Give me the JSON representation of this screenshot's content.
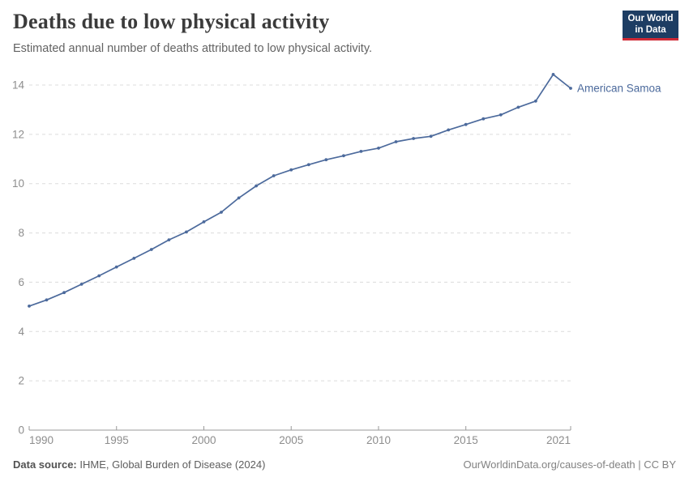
{
  "header": {
    "title": "Deaths due to low physical activity",
    "subtitle": "Estimated annual number of deaths attributed to low physical activity.",
    "logo": {
      "line1": "Our World",
      "line2": "in Data"
    }
  },
  "chart_data": {
    "type": "line",
    "title": "Deaths due to low physical activity",
    "xlabel": "",
    "ylabel": "",
    "x": [
      1990,
      1991,
      1992,
      1993,
      1994,
      1995,
      1996,
      1997,
      1998,
      1999,
      2000,
      2001,
      2002,
      2003,
      2004,
      2005,
      2006,
      2007,
      2008,
      2009,
      2010,
      2011,
      2012,
      2013,
      2014,
      2015,
      2016,
      2017,
      2018,
      2019,
      2020,
      2021
    ],
    "series": [
      {
        "name": "American Samoa",
        "color": "#4c6a9c",
        "values": [
          5.03,
          5.28,
          5.58,
          5.92,
          6.26,
          6.62,
          6.97,
          7.33,
          7.72,
          8.04,
          8.45,
          8.84,
          9.42,
          9.91,
          10.32,
          10.56,
          10.77,
          10.97,
          11.13,
          11.31,
          11.44,
          11.7,
          11.83,
          11.92,
          12.18,
          12.4,
          12.63,
          12.79,
          13.1,
          13.35,
          14.43,
          13.87
        ]
      }
    ],
    "xlim": [
      1990,
      2021
    ],
    "ylim": [
      0,
      14
    ],
    "x_ticks": [
      1990,
      1995,
      2000,
      2005,
      2010,
      2015,
      2021
    ],
    "y_ticks": [
      0,
      2,
      4,
      6,
      8,
      10,
      12,
      14
    ],
    "grid": "horizontal-dashed",
    "legend_position": "end-of-line-label"
  },
  "footer": {
    "data_source_label": "Data source:",
    "data_source_text": " IHME, Global Burden of Disease (2024)",
    "attribution": "OurWorldinData.org/causes-of-death | CC BY"
  },
  "colors": {
    "line": "#4c6a9c",
    "grid": "#dcdcdc",
    "axis": "#999999",
    "axis_text": "#8d8d8d",
    "logo_bg": "#1d3d63",
    "logo_accent": "#cf2a36"
  }
}
